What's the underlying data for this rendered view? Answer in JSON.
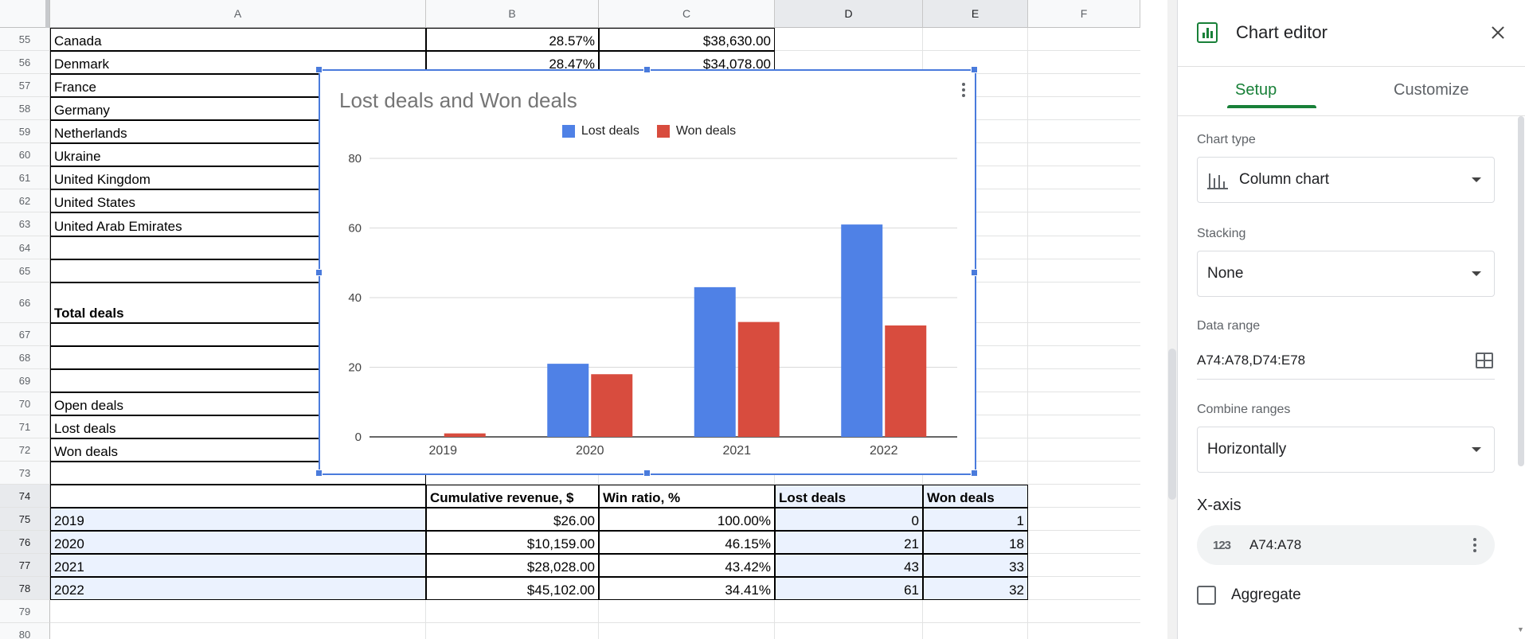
{
  "sheet": {
    "columns": [
      "A",
      "B",
      "C",
      "D",
      "E",
      "F"
    ],
    "rows": [
      {
        "num": "55",
        "a": "Canada",
        "b": "28.57%",
        "c": "$38,630.00",
        "d": "",
        "e": ""
      },
      {
        "num": "56",
        "a": "Denmark",
        "b": "28.47%",
        "c": "$34,078.00",
        "d": "",
        "e": ""
      },
      {
        "num": "57",
        "a": "France",
        "b": "",
        "c": "",
        "d": "",
        "e": ""
      },
      {
        "num": "58",
        "a": "Germany",
        "b": "",
        "c": "",
        "d": "",
        "e": ""
      },
      {
        "num": "59",
        "a": "Netherlands",
        "b": "",
        "c": "",
        "d": "",
        "e": ""
      },
      {
        "num": "60",
        "a": "Ukraine",
        "b": "",
        "c": "",
        "d": "",
        "e": ""
      },
      {
        "num": "61",
        "a": "United Kingdom",
        "b": "",
        "c": "",
        "d": "",
        "e": ""
      },
      {
        "num": "62",
        "a": "United States",
        "b": "",
        "c": "",
        "d": "",
        "e": ""
      },
      {
        "num": "63",
        "a": "United Arab Emirates",
        "b": "",
        "c": "",
        "d": "",
        "e": ""
      },
      {
        "num": "64",
        "a": "",
        "b": "",
        "c": "",
        "d": "",
        "e": ""
      },
      {
        "num": "65",
        "a": "",
        "b": "",
        "c": "",
        "d": "",
        "e": ""
      },
      {
        "num": "66",
        "a": "Total deals",
        "b": "",
        "c": "",
        "d": "",
        "e": ""
      },
      {
        "num": "67",
        "a": "",
        "b": "",
        "c": "",
        "d": "",
        "e": ""
      },
      {
        "num": "68",
        "a": "",
        "b": "",
        "c": "",
        "d": "",
        "e": ""
      },
      {
        "num": "69",
        "a": "",
        "b": "",
        "c": "",
        "d": "",
        "e": ""
      },
      {
        "num": "70",
        "a": "Open deals",
        "b": "",
        "c": "",
        "d": "",
        "e": ""
      },
      {
        "num": "71",
        "a": "Lost deals",
        "b": "",
        "c": "",
        "d": "",
        "e": ""
      },
      {
        "num": "72",
        "a": "Won deals",
        "b": "",
        "c": "",
        "d": "",
        "e": ""
      },
      {
        "num": "73",
        "a": "",
        "b": "",
        "c": "",
        "d": "",
        "e": ""
      },
      {
        "num": "74",
        "a": "",
        "b": "Cumulative revenue, $",
        "c": "Win ratio, %",
        "d": "Lost deals",
        "e": "Won deals"
      },
      {
        "num": "75",
        "a": "2019",
        "b": "$26.00",
        "c": "100.00%",
        "d": "0",
        "e": "1"
      },
      {
        "num": "76",
        "a": "2020",
        "b": "$10,159.00",
        "c": "46.15%",
        "d": "21",
        "e": "18"
      },
      {
        "num": "77",
        "a": "2021",
        "b": "$28,028.00",
        "c": "43.42%",
        "d": "43",
        "e": "33"
      },
      {
        "num": "78",
        "a": "2022",
        "b": "$45,102.00",
        "c": "34.41%",
        "d": "61",
        "e": "32"
      },
      {
        "num": "79",
        "a": "",
        "b": "",
        "c": "",
        "d": "",
        "e": ""
      },
      {
        "num": "80",
        "a": "",
        "b": "",
        "c": "",
        "d": "",
        "e": ""
      }
    ]
  },
  "chart_data": {
    "type": "bar",
    "title": "Lost deals and Won deals",
    "categories": [
      "2019",
      "2020",
      "2021",
      "2022"
    ],
    "series": [
      {
        "name": "Lost deals",
        "values": [
          0,
          21,
          43,
          61
        ],
        "color": "#4f81e6"
      },
      {
        "name": "Won deals",
        "values": [
          1,
          18,
          33,
          32
        ],
        "color": "#d84c3e"
      }
    ],
    "yticks": [
      "0",
      "20",
      "40",
      "60",
      "80"
    ],
    "ylim": [
      0,
      80
    ],
    "grid": true,
    "legend": "top"
  },
  "panel": {
    "title": "Chart editor",
    "tabs": {
      "setup": "Setup",
      "customize": "Customize"
    },
    "chart_type_label": "Chart type",
    "chart_type_value": "Column chart",
    "stacking_label": "Stacking",
    "stacking_value": "None",
    "data_range_label": "Data range",
    "data_range_value": "A74:A78,D74:E78",
    "combine_label": "Combine ranges",
    "combine_value": "Horizontally",
    "xaxis_title": "X-axis",
    "xaxis_chip_icon": "123",
    "xaxis_chip_value": "A74:A78",
    "aggregate_label": "Aggregate"
  },
  "colors": {
    "accent": "#188038",
    "selection": "#4a7bdc"
  }
}
